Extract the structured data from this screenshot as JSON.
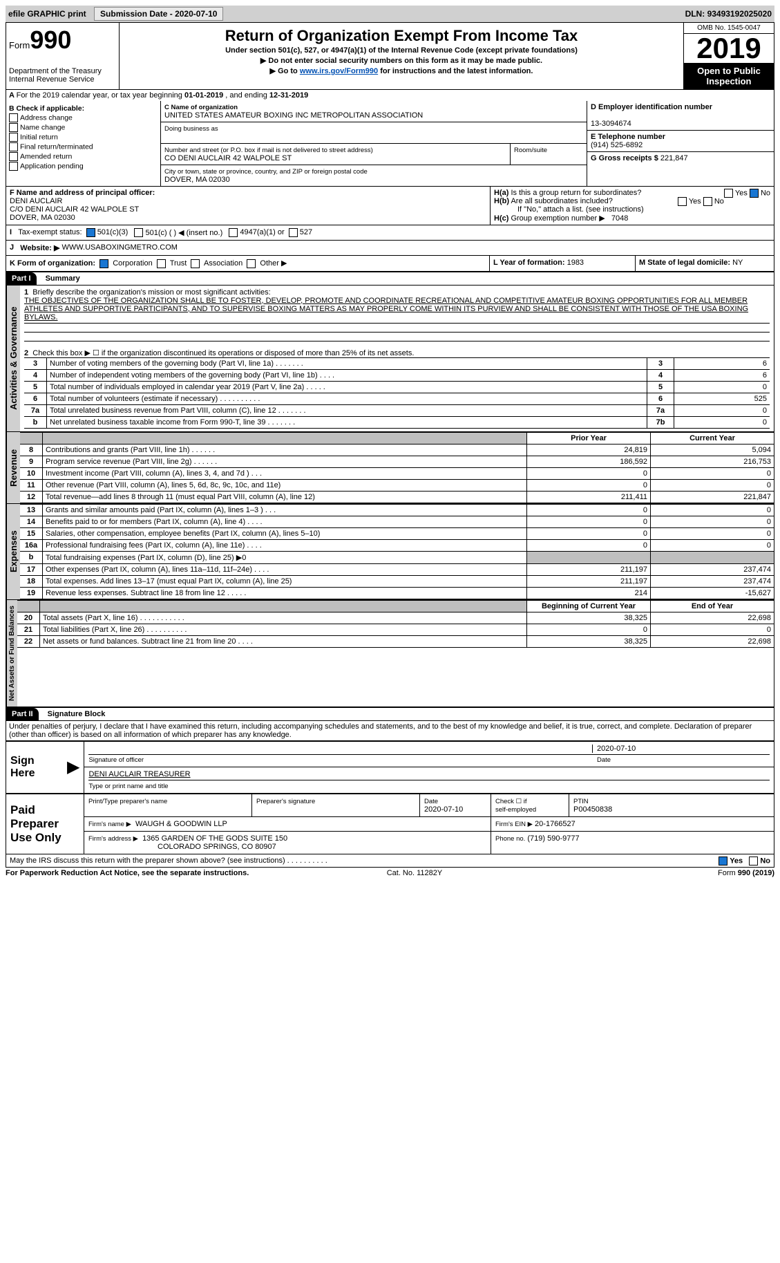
{
  "topbar": {
    "efile": "efile GRAPHIC print",
    "subdate_label": "Submission Date - ",
    "subdate": "2020-07-10",
    "dln_label": "DLN: ",
    "dln": "93493192025020"
  },
  "header": {
    "form_word": "Form",
    "form_num": "990",
    "dept": "Department of the Treasury",
    "irs": "Internal Revenue Service",
    "title": "Return of Organization Exempt From Income Tax",
    "sub1": "Under section 501(c), 527, or 4947(a)(1) of the Internal Revenue Code (except private foundations)",
    "sub2": "▶ Do not enter social security numbers on this form as it may be made public.",
    "sub3a": "▶ Go to ",
    "sub3link": "www.irs.gov/Form990",
    "sub3b": " for instructions and the latest information.",
    "omb": "OMB No. 1545-0047",
    "year": "2019",
    "open": "Open to Public Inspection"
  },
  "A": {
    "text": "For the 2019 calendar year, or tax year beginning ",
    "begin": "01-01-2019",
    "mid": " , and ending ",
    "end": "12-31-2019"
  },
  "B": {
    "hdr": "B Check if applicable:",
    "items": [
      "Address change",
      "Name change",
      "Initial return",
      "Final return/terminated",
      "Amended return",
      "Application pending"
    ]
  },
  "C": {
    "name_label": "C Name of organization",
    "name": "UNITED STATES AMATEUR BOXING INC METROPOLITAN ASSOCIATION",
    "dba_label": "Doing business as",
    "dba": "",
    "street_label": "Number and street (or P.O. box if mail is not delivered to street address)",
    "street": "CO DENI AUCLAIR 42 WALPOLE ST",
    "room_label": "Room/suite",
    "room": "",
    "city_label": "City or town, state or province, country, and ZIP or foreign postal code",
    "city": "DOVER, MA  02030"
  },
  "D": {
    "label": "D Employer identification number",
    "val": "13-3094674"
  },
  "E": {
    "label": "E Telephone number",
    "val": "(914) 525-6892"
  },
  "G": {
    "label": "G Gross receipts $",
    "val": "221,847"
  },
  "F": {
    "label": "F Name and address of principal officer:",
    "name": "DENI AUCLAIR",
    "addr1": "C/O DENI AUCLAIR 42 WALPOLE ST",
    "addr2": "DOVER, MA  02030"
  },
  "H": {
    "a": "Is this a group return for subordinates?",
    "a_yes": "Yes",
    "a_no": "No",
    "b": "Are all subordinates included?",
    "b_yes": "Yes",
    "b_no": "No",
    "b_note": "If \"No,\" attach a list. (see instructions)",
    "c": "Group exemption number ▶",
    "c_val": "7048"
  },
  "I": {
    "label": "Tax-exempt status:",
    "c3": "501(c)(3)",
    "c": "501(c) (   ) ◀ (insert no.)",
    "a1": "4947(a)(1) or",
    "s527": "527"
  },
  "J": {
    "label": "Website: ▶",
    "val": "WWW.USABOXINGMETRO.COM"
  },
  "K": {
    "label": "K Form of organization:",
    "corp": "Corporation",
    "trust": "Trust",
    "assoc": "Association",
    "other": "Other ▶"
  },
  "L": {
    "label": "L Year of formation:",
    "val": "1983"
  },
  "M": {
    "label": "M State of legal domicile:",
    "val": "NY"
  },
  "partI": {
    "hdr": "Part I",
    "title": "Summary",
    "l1_label": "Briefly describe the organization's mission or most significant activities:",
    "l1_text": "THE OBJECTIVES OF THE ORGANIZATION SHALL BE TO FOSTER, DEVELOP, PROMOTE AND COORDINATE RECREATIONAL AND COMPETITIVE AMATEUR BOXING OPPORTUNITIES FOR ALL MEMBER ATHLETES AND SUPPORTIVE PARTICIPANTS, AND TO SUPERVISE BOXING MATTERS AS MAY PROPERLY COME WITHIN ITS PURVIEW AND SHALL BE CONSISTENT WITH THOSE OF THE USA BOXING BYLAWS.",
    "l2": "Check this box ▶ ☐  if the organization discontinued its operations or disposed of more than 25% of its net assets."
  },
  "gov": {
    "tab": "Activities & Governance",
    "rows": [
      {
        "n": "3",
        "d": "Number of voting members of the governing body (Part VI, line 1a)    .      .      .      .      .      .      .",
        "lab": "3",
        "v": "6"
      },
      {
        "n": "4",
        "d": "Number of independent voting members of the governing body (Part VI, line 1b)    .     .     .     .",
        "lab": "4",
        "v": "6"
      },
      {
        "n": "5",
        "d": "Total number of individuals employed in calendar year 2019 (Part V, line 2a)    .     .     .     .     .",
        "lab": "5",
        "v": "0"
      },
      {
        "n": "6",
        "d": "Total number of volunteers (estimate if necessary)     .      .      .      .      .      .      .      .      .      .",
        "lab": "6",
        "v": "525"
      },
      {
        "n": "7a",
        "d": "Total unrelated business revenue from Part VIII, column (C), line 12    .     .     .     .     .     .     .",
        "lab": "7a",
        "v": "0"
      },
      {
        "n": "b",
        "d": "Net unrelated business taxable income from Form 990-T, line 39    .      .      .      .      .      .      .",
        "lab": "7b",
        "v": "0"
      }
    ]
  },
  "rev": {
    "tab": "Revenue",
    "hdr_prior": "Prior Year",
    "hdr_curr": "Current Year",
    "rows": [
      {
        "n": "8",
        "d": "Contributions and grants (Part VIII, line 1h)    .      .      .      .      .      .",
        "p": "24,819",
        "c": "5,094"
      },
      {
        "n": "9",
        "d": "Program service revenue (Part VIII, line 2g)    .     .     .     .     .     .",
        "p": "186,592",
        "c": "216,753"
      },
      {
        "n": "10",
        "d": "Investment income (Part VIII, column (A), lines 3, 4, and 7d )    .     .     .",
        "p": "0",
        "c": "0"
      },
      {
        "n": "11",
        "d": "Other revenue (Part VIII, column (A), lines 5, 6d, 8c, 9c, 10c, and 11e)",
        "p": "0",
        "c": "0"
      },
      {
        "n": "12",
        "d": "Total revenue—add lines 8 through 11 (must equal Part VIII, column (A), line 12)",
        "p": "211,411",
        "c": "221,847"
      }
    ]
  },
  "exp": {
    "tab": "Expenses",
    "rows": [
      {
        "n": "13",
        "d": "Grants and similar amounts paid (Part IX, column (A), lines 1–3 )  .     .     .",
        "p": "0",
        "c": "0"
      },
      {
        "n": "14",
        "d": "Benefits paid to or for members (Part IX, column (A), line 4)  .     .     .     .",
        "p": "0",
        "c": "0"
      },
      {
        "n": "15",
        "d": "Salaries, other compensation, employee benefits (Part IX, column (A), lines 5–10)",
        "p": "0",
        "c": "0"
      },
      {
        "n": "16a",
        "d": "Professional fundraising fees (Part IX, column (A), line 11e)    .     .     .     .",
        "p": "0",
        "c": "0"
      },
      {
        "n": "b",
        "d": "Total fundraising expenses (Part IX, column (D), line 25) ▶0",
        "grey": true
      },
      {
        "n": "17",
        "d": "Other expenses (Part IX, column (A), lines 11a–11d, 11f–24e)    .      .      .      .",
        "p": "211,197",
        "c": "237,474"
      },
      {
        "n": "18",
        "d": "Total expenses. Add lines 13–17 (must equal Part IX, column (A), line 25)",
        "p": "211,197",
        "c": "237,474"
      },
      {
        "n": "19",
        "d": "Revenue less expenses. Subtract line 18 from line 12    .      .      .      .      .",
        "p": "214",
        "c": "-15,627"
      }
    ]
  },
  "net": {
    "tab": "Net Assets or Fund Balances",
    "hdr_begin": "Beginning of Current Year",
    "hdr_end": "End of Year",
    "rows": [
      {
        "n": "20",
        "d": "Total assets (Part X, line 16)  .     .     .     .     .     .     .     .     .     .     .",
        "p": "38,325",
        "c": "22,698"
      },
      {
        "n": "21",
        "d": "Total liabilities (Part X, line 26)  .     .     .     .     .     .     .     .     .     .",
        "p": "0",
        "c": "0"
      },
      {
        "n": "22",
        "d": "Net assets or fund balances. Subtract line 21 from line 20  .     .     .     .",
        "p": "38,325",
        "c": "22,698"
      }
    ]
  },
  "partII": {
    "hdr": "Part II",
    "title": "Signature Block",
    "decl": "Under penalties of perjury, I declare that I have examined this return, including accompanying schedules and statements, and to the best of my knowledge and belief, it is true, correct, and complete. Declaration of preparer (other than officer) is based on all information of which preparer has any knowledge."
  },
  "sign": {
    "here": "Sign Here",
    "sig_label": "Signature of officer",
    "date_label": "Date",
    "date": "2020-07-10",
    "name": "DENI AUCLAIR TREASURER",
    "name_label": "Type or print name and title"
  },
  "prep": {
    "hdr": "Paid Preparer Use Only",
    "col1": "Print/Type preparer's name",
    "col2": "Preparer's signature",
    "col3": "Date",
    "date": "2020-07-10",
    "col4a": "Check ☐ if",
    "col4b": "self-employed",
    "col5": "PTIN",
    "ptin": "P00450838",
    "firm_label": "Firm's name    ▶",
    "firm": "WAUGH & GOODWIN LLP",
    "ein_label": "Firm's EIN ▶",
    "ein": "20-1766527",
    "addr_label": "Firm's address ▶",
    "addr1": "1365 GARDEN OF THE GODS SUITE 150",
    "addr2": "COLORADO SPRINGS, CO  80907",
    "phone_label": "Phone no.",
    "phone": "(719) 590-9777"
  },
  "discuss": {
    "text": "May the IRS discuss this return with the preparer shown above? (see instructions)     .      .      .      .      .      .      .      .      .      .",
    "yes": "Yes",
    "no": "No"
  },
  "footer": {
    "left": "For Paperwork Reduction Act Notice, see the separate instructions.",
    "mid": "Cat. No. 11282Y",
    "right": "Form 990 (2019)"
  },
  "colors": {
    "link": "#0050b3",
    "grey": "#bfbfbf",
    "chk_on": "#1976d2"
  }
}
